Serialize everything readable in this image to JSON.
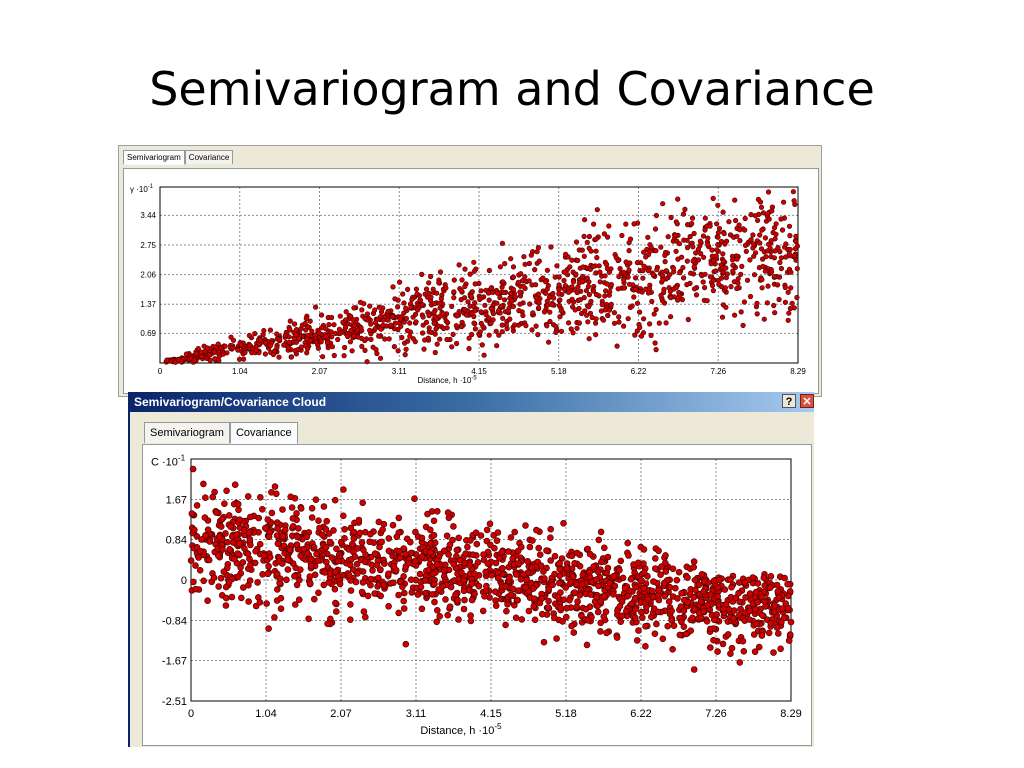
{
  "slide": {
    "title": "Semivariogram and Covariance"
  },
  "top_window": {
    "tabs": [
      {
        "label": "Semivariogram",
        "active": true
      },
      {
        "label": "Covariance",
        "active": false
      }
    ]
  },
  "bottom_window": {
    "title": "Semivariogram/Covariance Cloud",
    "help_icon_text": "?",
    "close_icon_text": "✕",
    "tabs": [
      {
        "label": "Semivariogram",
        "active": false
      },
      {
        "label": "Covariance",
        "active": true
      }
    ]
  },
  "colors": {
    "point_fill": "#cc0000",
    "point_stroke": "#3a0000",
    "titlebar": "#0a246a",
    "panel": "#ece9d8"
  },
  "chart_data": [
    {
      "type": "scatter",
      "title": "",
      "ylabel_text": "γ ·10",
      "ylabel_exp": "-1",
      "xlabel_text": "Distance, h ·10",
      "xlabel_exp": "-5",
      "xlim": [
        0,
        8.29
      ],
      "ylim": [
        0,
        4.1
      ],
      "x_ticks": [
        "0",
        "1.04",
        "2.07",
        "3.11",
        "4.15",
        "5.18",
        "6.22",
        "7.26",
        "8.29"
      ],
      "y_ticks": [
        {
          "value": 0.69,
          "label": "0.69"
        },
        {
          "value": 1.37,
          "label": "1.37"
        },
        {
          "value": 2.06,
          "label": "2.06"
        },
        {
          "value": 2.75,
          "label": "2.75"
        },
        {
          "value": 3.44,
          "label": "3.44"
        }
      ],
      "grid": true,
      "cloud": {
        "count": 1400,
        "x_range": [
          0.05,
          8.29
        ],
        "center_slope": 0.33,
        "spread_base": 0.05,
        "spread_slope": 0.17,
        "max_y": 4.0
      }
    },
    {
      "type": "scatter",
      "title": "",
      "ylabel_text": "C ·10",
      "ylabel_exp": "-1",
      "xlabel_text": "Distance, h ·10",
      "xlabel_exp": "-5",
      "xlim": [
        0,
        8.29
      ],
      "ylim": [
        -2.51,
        2.51
      ],
      "x_ticks": [
        "0",
        "1.04",
        "2.07",
        "3.11",
        "4.15",
        "5.18",
        "6.22",
        "7.26",
        "8.29"
      ],
      "y_ticks": [
        {
          "value": -2.51,
          "label": "-2.51"
        },
        {
          "value": -1.67,
          "label": "-1.67"
        },
        {
          "value": -0.84,
          "label": "-0.84"
        },
        {
          "value": 0,
          "label": "0"
        },
        {
          "value": 0.84,
          "label": "0.84"
        },
        {
          "value": 1.67,
          "label": "1.67"
        }
      ],
      "grid": true,
      "cloud": {
        "count": 1600,
        "x_range": [
          0,
          8.29
        ],
        "center_start": 0.85,
        "center_slope": -0.18,
        "spread": 0.55,
        "y_clip": [
          -2.1,
          2.55
        ]
      }
    }
  ]
}
